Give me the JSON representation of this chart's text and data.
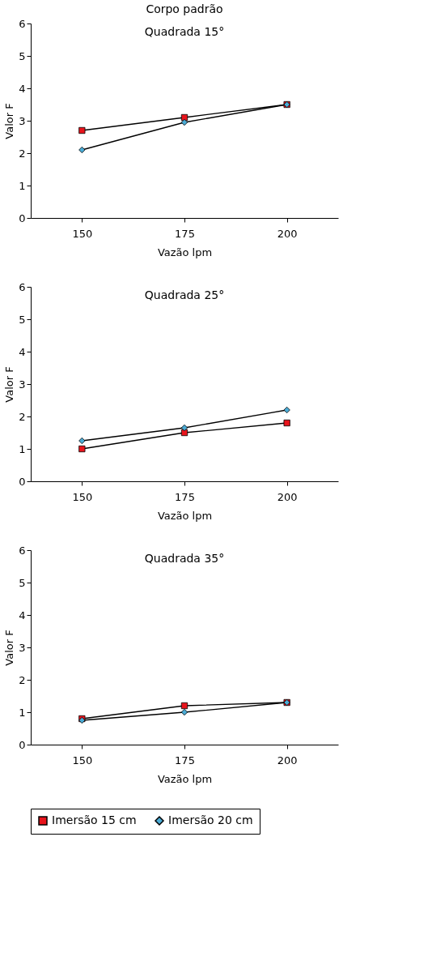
{
  "chart_data": [
    {
      "type": "line",
      "title": "Quadrada 15°",
      "annotations": [
        "Corpo padrão"
      ],
      "xlabel": "Vazão lpm",
      "ylabel": "Valor F",
      "categories": [
        "150",
        "175",
        "200"
      ],
      "ylim": [
        0,
        6
      ],
      "yticks": [
        0,
        1,
        2,
        3,
        4,
        5,
        6
      ],
      "grid": false,
      "legend": "bottom",
      "series": [
        {
          "name": "Imersão 15 cm",
          "color": "#e8141c",
          "marker": "square",
          "values": [
            2.7,
            3.1,
            3.5
          ]
        },
        {
          "name": "Imersão 20 cm",
          "color": "#4bacd6",
          "marker": "diamond",
          "values": [
            2.1,
            2.95,
            3.5
          ]
        }
      ]
    },
    {
      "type": "line",
      "title": "Quadrada 25°",
      "xlabel": "Vazão lpm",
      "ylabel": "Valor F",
      "categories": [
        "150",
        "175",
        "200"
      ],
      "ylim": [
        0,
        6
      ],
      "yticks": [
        0,
        1,
        2,
        3,
        4,
        5,
        6
      ],
      "grid": false,
      "legend": "bottom",
      "series": [
        {
          "name": "Imersão 15 cm",
          "color": "#e8141c",
          "marker": "square",
          "values": [
            1.0,
            1.5,
            1.8
          ]
        },
        {
          "name": "Imersão 20 cm",
          "color": "#4bacd6",
          "marker": "diamond",
          "values": [
            1.25,
            1.65,
            2.2
          ]
        }
      ]
    },
    {
      "type": "line",
      "title": "Quadrada 35°",
      "xlabel": "Vazão lpm",
      "ylabel": "Valor F",
      "categories": [
        "150",
        "175",
        "200"
      ],
      "ylim": [
        0,
        6
      ],
      "yticks": [
        0,
        1,
        2,
        3,
        4,
        5,
        6
      ],
      "grid": false,
      "legend": "bottom",
      "series": [
        {
          "name": "Imersão 15 cm",
          "color": "#e8141c",
          "marker": "square",
          "values": [
            0.8,
            1.2,
            1.3
          ]
        },
        {
          "name": "Imersão 20 cm",
          "color": "#4bacd6",
          "marker": "diamond",
          "values": [
            0.75,
            1.0,
            1.3
          ]
        }
      ]
    }
  ]
}
